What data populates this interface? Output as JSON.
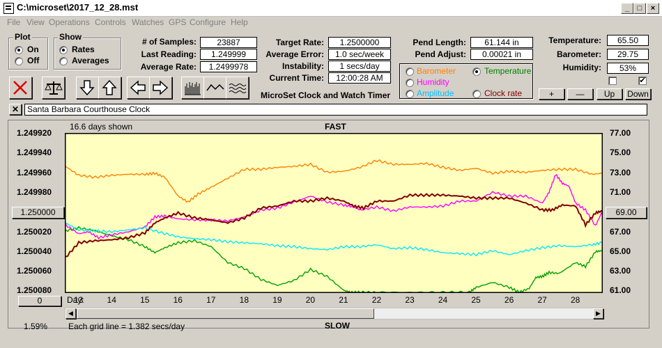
{
  "window": {
    "title": "C:\\microset\\2017_12_28.mst"
  },
  "menu": [
    "File",
    "View",
    "Operations",
    "Controls",
    "Watches",
    "GPS",
    "Configure",
    "Help"
  ],
  "plot_group": {
    "title": "Plot",
    "options": [
      "On",
      "Off"
    ],
    "selected": "On"
  },
  "show_group": {
    "title": "Show",
    "options": [
      "Rates",
      "Averages"
    ],
    "selected": "Rates"
  },
  "stats": {
    "samples_label": "# of Samples:",
    "samples": "23887",
    "last_reading_label": "Last Reading:",
    "last_reading": "1.249999",
    "average_rate_label": "Average Rate:",
    "average_rate": "1.2499978",
    "target_rate_label": "Target Rate:",
    "target_rate": "1.2500000",
    "average_error_label": "Average Error:",
    "average_error": "1.0 sec/week",
    "instability_label": "Instability:",
    "instability": "1 secs/day",
    "current_time_label": "Current Time:",
    "current_time": "12:00:28 AM",
    "pend_length_label": "Pend Length:",
    "pend_length": "61.144 in",
    "pend_adjust_label": "Pend Adjust:",
    "pend_adjust": "0.00021 in",
    "temperature_label": "Temperature:",
    "temperature": "65.50",
    "barometer_label": "Barometer:",
    "barometer": "29.75",
    "humidity_label": "Humidity:",
    "humidity": "53%"
  },
  "app_caption": "MicroSet Clock and Watch Timer",
  "overlay_group": {
    "options": [
      {
        "label": "Barometer",
        "color": "#ff8000",
        "selected": false
      },
      {
        "label": "Temperature",
        "color": "#008000",
        "selected": true
      },
      {
        "label": "Humidity",
        "color": "#ff00ff",
        "selected": false
      },
      {
        "label": "Amplitude",
        "color": "#00c0ff",
        "selected": false
      },
      {
        "label": "Clock rate",
        "color": "#800000",
        "selected": false
      }
    ]
  },
  "adjust_buttons": {
    "plus": "+",
    "minus": "—",
    "up": "Up",
    "down": "Down"
  },
  "toolbar_icons": [
    "close-x-icon",
    "scale-icon",
    "arrow-down-icon",
    "arrow-up-icon",
    "arrow-left-icon",
    "arrow-right-icon",
    "bar-chart-icon",
    "line-chart-icon",
    "wave-chart-icon"
  ],
  "clock_name": "Santa Barbara Courthouse Clock",
  "chart": {
    "days_shown": "16.6 days shown",
    "fast_label": "FAST",
    "slow_label": "SLOW",
    "grid_note": "Each grid line = 1.382 secs/day",
    "percent": "1.59%",
    "left_button": "1.250000",
    "right_button": "69.00",
    "zero_button": "0",
    "day_prefix": "Day:"
  },
  "chart_data": {
    "type": "line",
    "x": [
      12.6,
      28.8
    ],
    "x_ticks": [
      "13",
      "14",
      "15",
      "16",
      "17",
      "18",
      "19",
      "20",
      "21",
      "22",
      "23",
      "24",
      "25",
      "26",
      "27",
      "28"
    ],
    "y_left_ticks": [
      "1.249920",
      "1.249940",
      "1.249960",
      "1.249980",
      "1.250000",
      "1.250020",
      "1.250040",
      "1.250060",
      "1.250080"
    ],
    "y_right_ticks": [
      "77.00",
      "75.00",
      "73.00",
      "71.00",
      "69.00",
      "67.00",
      "65.00",
      "63.00",
      "61.00"
    ],
    "ylim_left": [
      1.24992,
      1.25008
    ],
    "ylim_right": [
      61,
      77
    ],
    "series": [
      {
        "name": "Barometer",
        "color": "#ff8000",
        "x": [
          12.6,
          13.0,
          13.5,
          14.0,
          14.5,
          15.0,
          15.3,
          15.6,
          16.0,
          16.3,
          16.6,
          17.0,
          17.5,
          18.0,
          18.5,
          19.0,
          19.5,
          20.0,
          20.5,
          21.0,
          21.5,
          22.0,
          22.5,
          23.0,
          23.5,
          24.0,
          24.5,
          25.0,
          25.5,
          26.0,
          26.5,
          27.0,
          27.5,
          28.0,
          28.5,
          28.8
        ],
        "y": [
          73.7,
          72.8,
          72.6,
          72.8,
          72.9,
          72.9,
          73.0,
          72.6,
          70.7,
          70.1,
          70.9,
          71.6,
          72.5,
          73.4,
          73.4,
          73.6,
          73.7,
          73.9,
          73.1,
          73.2,
          73.6,
          74.3,
          73.9,
          73.9,
          74.0,
          73.6,
          73.3,
          73.5,
          73.0,
          73.2,
          73.1,
          73.3,
          73.4,
          73.4,
          72.9,
          73.0
        ]
      },
      {
        "name": "Temperature",
        "color": "#00a000",
        "x": [
          12.6,
          13.0,
          13.5,
          14.0,
          14.5,
          15.0,
          15.3,
          15.6,
          16.0,
          16.5,
          17.0,
          17.5,
          18.0,
          18.5,
          19.0,
          19.5,
          20.0,
          20.5,
          21.0,
          21.2,
          21.5,
          22.0,
          23.0,
          24.0,
          24.8,
          25.0,
          25.5,
          26.0,
          26.3,
          26.6,
          26.8,
          27.0,
          27.2,
          27.5,
          28.0,
          28.3,
          28.6,
          28.8
        ],
        "y": [
          67.2,
          67.5,
          67.2,
          66.7,
          66.3,
          65.6,
          65.0,
          65.5,
          66.0,
          66.2,
          65.6,
          64.0,
          63.4,
          62.3,
          61.7,
          62.2,
          63.3,
          62.6,
          61.2,
          61.0,
          61.0,
          61.0,
          61.0,
          61.0,
          61.0,
          61.5,
          62.0,
          61.5,
          61.0,
          61.4,
          62.5,
          62.6,
          63.0,
          62.9,
          64.0,
          63.6,
          65.1,
          65.2
        ]
      },
      {
        "name": "Humidity",
        "color": "#ff00ff",
        "x": [
          12.6,
          13.0,
          13.3,
          13.6,
          14.0,
          14.5,
          15.0,
          15.3,
          15.6,
          16.0,
          16.5,
          17.0,
          17.5,
          18.0,
          18.5,
          19.0,
          19.5,
          20.0,
          20.5,
          21.0,
          21.3,
          21.5,
          22.0,
          22.5,
          23.0,
          23.5,
          24.0,
          24.5,
          25.0,
          25.5,
          26.0,
          26.5,
          27.0,
          27.2,
          27.4,
          27.6,
          27.8,
          28.0,
          28.3,
          28.6,
          28.8
        ],
        "y": [
          67.8,
          66.9,
          67.1,
          66.5,
          66.8,
          67.1,
          67.6,
          68.6,
          68.7,
          68.4,
          68.3,
          68.3,
          68.2,
          68.6,
          69.3,
          69.5,
          70.1,
          70.7,
          70.1,
          69.8,
          69.6,
          69.3,
          69.6,
          69.2,
          69.6,
          69.6,
          69.7,
          70.2,
          70.2,
          71.1,
          70.7,
          70.7,
          70.0,
          71.1,
          72.9,
          72.0,
          71.7,
          70.0,
          69.3,
          67.7,
          69.1
        ]
      },
      {
        "name": "Amplitude",
        "color": "#00e8ff",
        "x": [
          12.6,
          13.0,
          13.5,
          14.0,
          14.5,
          15.0,
          15.5,
          16.0,
          16.5,
          17.0,
          17.5,
          18.0,
          18.5,
          19.0,
          19.5,
          20.0,
          20.5,
          21.0,
          21.5,
          22.0,
          22.5,
          23.0,
          23.5,
          24.0,
          24.5,
          25.0,
          25.5,
          26.0,
          26.5,
          27.0,
          27.5,
          28.0,
          28.5,
          28.8
        ],
        "y": [
          68.0,
          67.3,
          67.2,
          67.1,
          67.3,
          67.5,
          67.0,
          66.6,
          66.4,
          66.3,
          66.1,
          66.0,
          65.9,
          65.7,
          65.6,
          65.4,
          65.3,
          65.6,
          65.6,
          65.8,
          65.4,
          65.5,
          65.3,
          65.0,
          64.9,
          64.8,
          65.2,
          64.8,
          65.2,
          65.5,
          65.7,
          65.6,
          65.8,
          66.0
        ]
      },
      {
        "name": "Clock rate",
        "color": "#800000",
        "x": [
          12.6,
          13.0,
          13.5,
          14.0,
          14.5,
          15.0,
          15.3,
          15.6,
          16.0,
          16.5,
          17.0,
          17.5,
          18.0,
          18.5,
          19.0,
          19.5,
          20.0,
          20.5,
          21.0,
          21.3,
          21.6,
          22.0,
          22.5,
          23.0,
          23.5,
          24.0,
          24.5,
          25.0,
          25.5,
          26.0,
          26.5,
          27.0,
          27.3,
          27.6,
          28.0,
          28.3,
          28.6,
          28.8
        ],
        "y": [
          1.250045,
          1.25003,
          1.250028,
          1.250027,
          1.250025,
          1.25002,
          1.25001,
          1.250005,
          1.25,
          1.250005,
          1.250007,
          1.25001,
          1.250005,
          1.249995,
          1.249993,
          1.249988,
          1.249988,
          1.249985,
          1.249988,
          1.249993,
          1.249995,
          1.249988,
          1.249988,
          1.249982,
          1.249982,
          1.249982,
          1.249983,
          1.249985,
          1.249985,
          1.249985,
          1.24999,
          1.249997,
          1.249997,
          1.249992,
          1.249993,
          1.250012,
          1.25,
          1.249998
        ]
      }
    ]
  },
  "checkboxes": [
    {
      "checked": false
    },
    {
      "checked": true
    }
  ]
}
